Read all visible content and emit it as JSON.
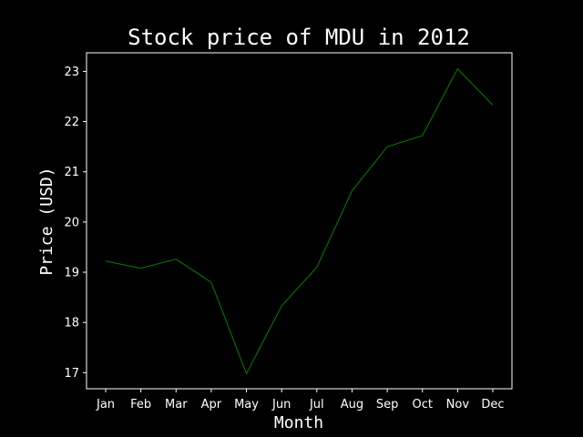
{
  "chart_data": {
    "type": "line",
    "title": "Stock price of MDU in 2012",
    "xlabel": "Month",
    "ylabel": "Price (USD)",
    "categories": [
      "Jan",
      "Feb",
      "Mar",
      "Apr",
      "May",
      "Jun",
      "Jul",
      "Aug",
      "Sep",
      "Oct",
      "Nov",
      "Dec"
    ],
    "series": [
      {
        "values": [
          19.22,
          19.08,
          19.26,
          18.8,
          16.98,
          18.33,
          19.1,
          20.62,
          21.5,
          21.72,
          23.05,
          22.33
        ]
      }
    ],
    "yticks": [
      17,
      18,
      19,
      20,
      21,
      22,
      23
    ],
    "ylim": [
      16.68,
      23.37
    ],
    "grid": false,
    "legend": "none",
    "colors": {
      "background": "#000000",
      "line": "#008000",
      "text": "#ffffff",
      "axes": "#ffffff"
    }
  }
}
